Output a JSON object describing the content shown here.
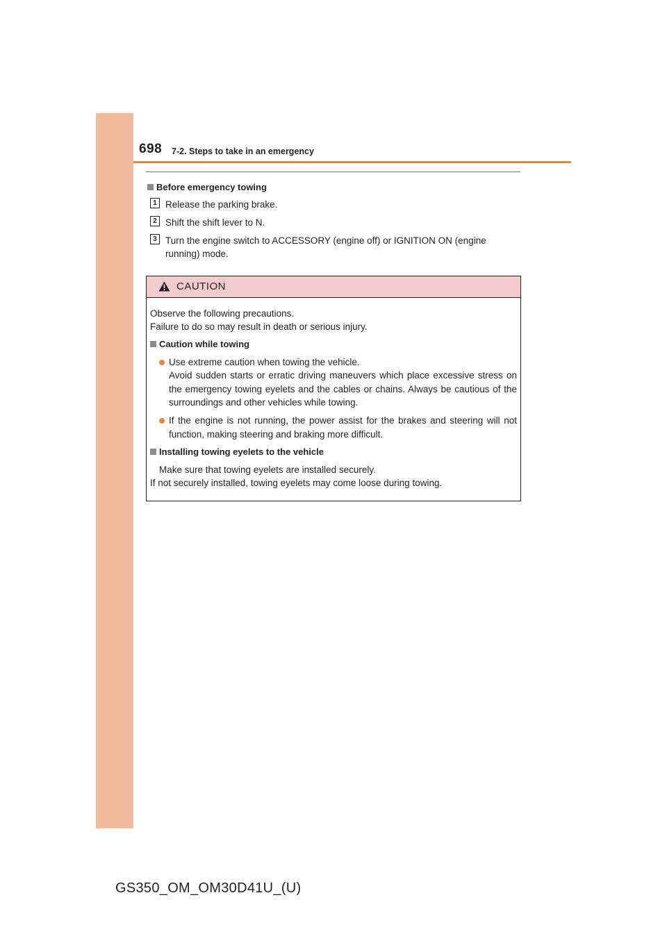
{
  "header": {
    "page_number": "698",
    "section_title": "7-2. Steps to take in an emergency"
  },
  "towing": {
    "heading": "Before emergency towing",
    "steps": [
      {
        "num": "1",
        "text": "Release the parking brake."
      },
      {
        "num": "2",
        "text": "Shift the shift lever to N."
      },
      {
        "num": "3",
        "text": "Turn the engine switch to ACCESSORY (engine off) or IGNITION ON (engine running) mode."
      }
    ]
  },
  "caution": {
    "icon": "warning-triangle-icon",
    "label": "CAUTION",
    "intro_line1": "Observe the following precautions.",
    "intro_line2": "Failure to do so may result in death or serious injury.",
    "section1_heading": "Caution while towing",
    "bullet1_line1": "Use extreme caution when towing the vehicle.",
    "bullet1_line2": "Avoid sudden starts or erratic driving maneuvers which place excessive stress on the emergency towing eyelets and the cables or chains. Always be cautious of the surroundings and other vehicles while towing.",
    "bullet2": "If the engine is not running, the power assist for the brakes and steering will not function, making steering and braking more difficult.",
    "section2_heading": "Installing towing eyelets to the vehicle",
    "section2_line1": "Make sure that towing eyelets are installed securely.",
    "section2_line2": "If not securely installed, towing eyelets may come loose during towing."
  },
  "footer": {
    "doc_code": "GS350_OM_OM30D41U_(U)"
  },
  "colors": {
    "accent_orange": "#e8834a",
    "side_band": "#f2bb9b",
    "caution_header_bg": "#f2cccc"
  }
}
